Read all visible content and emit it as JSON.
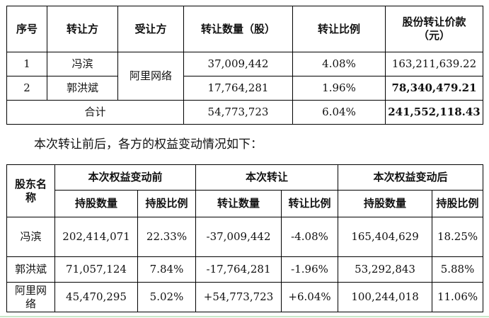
{
  "transfer_table": {
    "headers": {
      "seq": "序号",
      "transferor": "转让方",
      "transferee": "受让方",
      "shares": "转让数量（股）",
      "ratio": "转让比例",
      "price": "股份转让价款（元）"
    },
    "transferee_name": "阿里网络",
    "rows": [
      {
        "seq": "1",
        "transferor": "冯滨",
        "shares": "37,009,442",
        "ratio": "4.08%",
        "price": "163,211,639.22"
      },
      {
        "seq": "2",
        "transferor": "郭洪斌",
        "shares": "17,764,281",
        "ratio": "1.96%",
        "price": "78,340,479.21"
      }
    ],
    "total": {
      "label": "合计",
      "shares": "54,773,723",
      "ratio": "6.04%",
      "price": "241,552,118.43"
    }
  },
  "sentence": "本次转让前后，各方的权益变动情况如下：",
  "equity_table": {
    "headers": {
      "shareholder": "股东名称",
      "before": "本次权益变动前",
      "transfer": "本次转让",
      "after": "本次权益变动后",
      "holding_qty": "持股数量",
      "holding_ratio": "持股比例",
      "transfer_qty": "转让数量",
      "transfer_ratio": "转让比例"
    },
    "rows": [
      {
        "name": "冯滨",
        "before_qty": "202,414,071",
        "before_ratio": "22.33%",
        "transfer_qty": "-37,009,442",
        "transfer_ratio": "-4.08%",
        "after_qty": "165,404,629",
        "after_ratio": "18.25%"
      },
      {
        "name": "郭洪斌",
        "before_qty": "71,057,124",
        "before_ratio": "7.84%",
        "transfer_qty": "-17,764,281",
        "transfer_ratio": "-1.96%",
        "after_qty": "53,292,843",
        "after_ratio": "5.88%"
      },
      {
        "name": "阿里网络",
        "before_qty": "45,470,295",
        "before_ratio": "5.02%",
        "transfer_qty": "+54,773,723",
        "transfer_ratio": "+6.04%",
        "after_qty": "100,244,018",
        "after_ratio": "11.06%"
      }
    ]
  }
}
